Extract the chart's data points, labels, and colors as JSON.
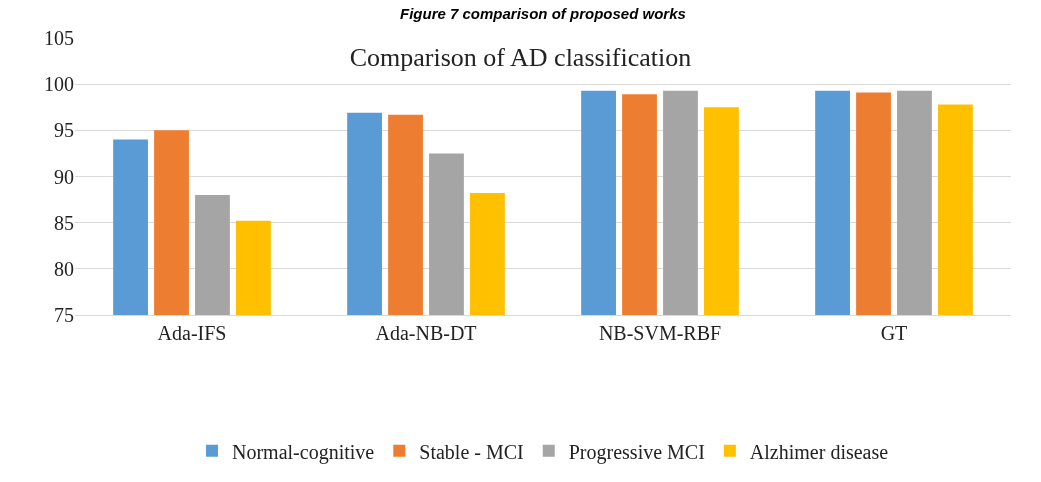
{
  "chart_data": {
    "type": "bar",
    "title": "Comparison of AD classification",
    "annotations": [
      "Figure 7 comparison of proposed works"
    ],
    "categories": [
      "Ada-IFS",
      "Ada-NB-DT",
      "NB-SVM-RBF",
      "GT"
    ],
    "series": [
      {
        "name": "Normal-cognitive",
        "color": "#5b9bd5",
        "values": [
          94.0,
          96.9,
          99.3,
          99.3
        ]
      },
      {
        "name": "Stable - MCI",
        "color": "#ed7d31",
        "values": [
          95.0,
          96.7,
          98.9,
          99.1
        ]
      },
      {
        "name": "Progressive MCI",
        "color": "#a5a5a5",
        "values": [
          88.0,
          92.5,
          99.3,
          99.3
        ]
      },
      {
        "name": "Alzhimer disease",
        "color": "#ffc000",
        "values": [
          85.2,
          88.2,
          97.5,
          97.8
        ]
      }
    ],
    "ylim": [
      75,
      105
    ],
    "yticks": [
      75,
      80,
      85,
      90,
      95,
      100,
      105
    ],
    "grid": "y",
    "legend": "bottom"
  }
}
